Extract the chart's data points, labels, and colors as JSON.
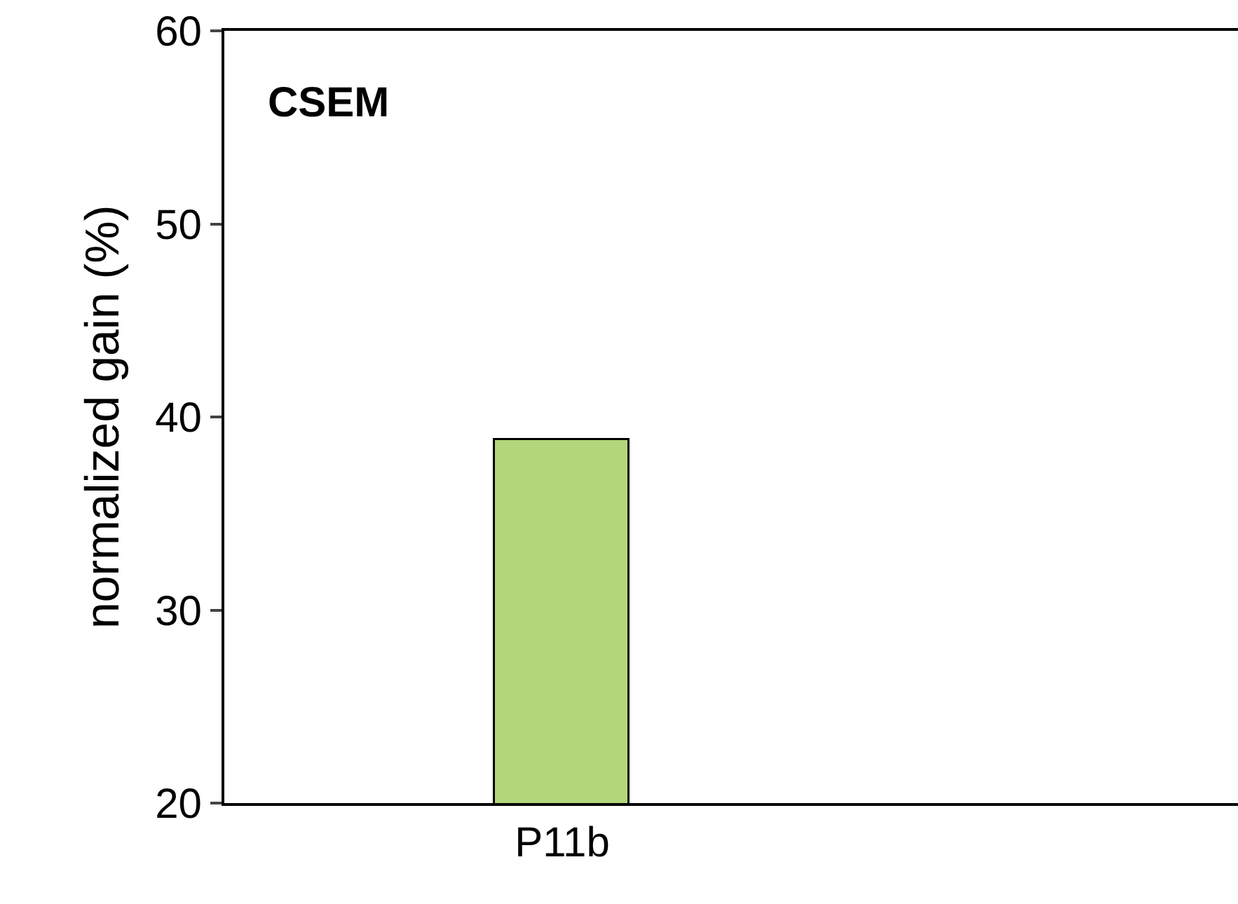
{
  "chart_data": {
    "type": "bar",
    "ylabel": "normalized gain (%)",
    "categories": [
      "P11b",
      null
    ],
    "values": [
      38.8,
      null
    ],
    "color": "#b3d67b",
    "ylim": [
      20,
      60
    ],
    "yticks": [
      20,
      30,
      40,
      50,
      60
    ],
    "legend": false,
    "annotations": [
      "CSEM"
    ]
  }
}
